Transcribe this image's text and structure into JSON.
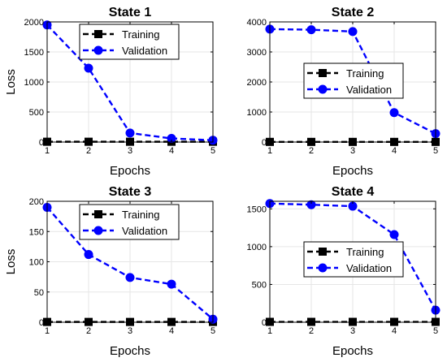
{
  "chart_data": [
    {
      "type": "line",
      "title": "State 1",
      "xlabel": "Epochs",
      "ylabel": "Loss",
      "x": [
        1,
        2,
        3,
        4,
        5
      ],
      "xlim": [
        1,
        5
      ],
      "ylim": [
        0,
        2000
      ],
      "yticks": [
        0,
        500,
        1000,
        1500,
        2000
      ],
      "ytick_labels": [
        "0",
        "500",
        "1000",
        "1500",
        "2000"
      ],
      "xticks": [
        1,
        2,
        3,
        4,
        5
      ],
      "xtick_labels": [
        "1",
        "2",
        "3",
        "4",
        "5"
      ],
      "grid": true,
      "legend_position": "top-right",
      "series": [
        {
          "name": "Training",
          "values": [
            5,
            5,
            5,
            5,
            5
          ],
          "color": "#000000",
          "marker": "square"
        },
        {
          "name": "Validation",
          "values": [
            1950,
            1230,
            150,
            60,
            30
          ],
          "color": "#0000ff",
          "marker": "circle"
        }
      ]
    },
    {
      "type": "line",
      "title": "State 2",
      "xlabel": "Epochs",
      "ylabel": "",
      "x": [
        1,
        2,
        3,
        4,
        5
      ],
      "xlim": [
        1,
        5
      ],
      "ylim": [
        0,
        4000
      ],
      "yticks": [
        0,
        1000,
        2000,
        3000,
        4000
      ],
      "ytick_labels": [
        "0",
        "1000",
        "2000",
        "3000",
        "4000"
      ],
      "xticks": [
        1,
        2,
        3,
        4,
        5
      ],
      "xtick_labels": [
        "1",
        "2",
        "3",
        "4",
        "5"
      ],
      "grid": true,
      "legend_position": "center-right",
      "series": [
        {
          "name": "Training",
          "values": [
            5,
            5,
            5,
            5,
            5
          ],
          "color": "#000000",
          "marker": "square"
        },
        {
          "name": "Validation",
          "values": [
            3760,
            3740,
            3680,
            980,
            280
          ],
          "color": "#0000ff",
          "marker": "circle"
        }
      ]
    },
    {
      "type": "line",
      "title": "State 3",
      "xlabel": "Epochs",
      "ylabel": "Loss",
      "x": [
        1,
        2,
        3,
        4,
        5
      ],
      "xlim": [
        1,
        5
      ],
      "ylim": [
        0,
        200
      ],
      "yticks": [
        0,
        50,
        100,
        150,
        200
      ],
      "ytick_labels": [
        "0",
        "50",
        "100",
        "150",
        "200"
      ],
      "xticks": [
        1,
        2,
        3,
        4,
        5
      ],
      "xtick_labels": [
        "1",
        "2",
        "3",
        "4",
        "5"
      ],
      "grid": true,
      "legend_position": "top-right",
      "series": [
        {
          "name": "Training",
          "values": [
            0.5,
            0.5,
            0.5,
            0.5,
            0.5
          ],
          "color": "#000000",
          "marker": "square"
        },
        {
          "name": "Validation",
          "values": [
            190,
            112,
            74,
            63,
            5
          ],
          "color": "#0000ff",
          "marker": "circle"
        }
      ]
    },
    {
      "type": "line",
      "title": "State 4",
      "xlabel": "Epochs",
      "ylabel": "",
      "x": [
        1,
        2,
        3,
        4,
        5
      ],
      "xlim": [
        1,
        5
      ],
      "ylim": [
        0,
        1600
      ],
      "yticks": [
        0,
        500,
        1000,
        1500
      ],
      "ytick_labels": [
        "0",
        "500",
        "1000",
        "1500"
      ],
      "xticks": [
        1,
        2,
        3,
        4,
        5
      ],
      "xtick_labels": [
        "1",
        "2",
        "3",
        "4",
        "5"
      ],
      "grid": true,
      "legend_position": "center-right",
      "series": [
        {
          "name": "Training",
          "values": [
            5,
            5,
            5,
            5,
            5
          ],
          "color": "#000000",
          "marker": "square"
        },
        {
          "name": "Validation",
          "values": [
            1570,
            1555,
            1535,
            1160,
            160
          ],
          "color": "#0000ff",
          "marker": "circle"
        }
      ]
    }
  ]
}
